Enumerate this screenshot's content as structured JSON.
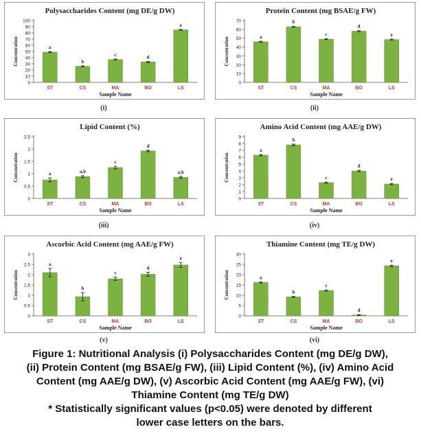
{
  "chart_data": [
    {
      "type": "bar",
      "title": "Polysaccharides Content (mg DE/g DW)",
      "panel_label": "(i)",
      "xlabel": "Sample Name",
      "ylabel": "Concentration",
      "categories": [
        "ST",
        "CS",
        "MA",
        "BO",
        "LS"
      ],
      "values": [
        49,
        26,
        37,
        33,
        85
      ],
      "errors": [
        0.8,
        0.8,
        0.8,
        0.8,
        0.8
      ],
      "letters": [
        "a",
        "b",
        "c",
        "d",
        "e"
      ],
      "ylim": [
        0,
        100
      ],
      "yticks": [
        0,
        10,
        20,
        30,
        40,
        50,
        60,
        70,
        80,
        90,
        100
      ]
    },
    {
      "type": "bar",
      "title": "Protein Content (mg BSAE/g FW)",
      "panel_label": "(ii)",
      "xlabel": "Sample Name",
      "ylabel": "Concentration",
      "categories": [
        "ST",
        "CS",
        "MA",
        "BO",
        "LS"
      ],
      "values": [
        46,
        63,
        49,
        58,
        48.5
      ],
      "errors": [
        0.6,
        0.6,
        0.6,
        0.6,
        0.6
      ],
      "letters": [
        "a",
        "b",
        "c",
        "d",
        "e"
      ],
      "ylim": [
        0,
        70
      ],
      "yticks": [
        0,
        10,
        20,
        30,
        40,
        50,
        60,
        70
      ]
    },
    {
      "type": "bar",
      "title": "Lipid Content (%)",
      "panel_label": "(iii)",
      "xlabel": "Sample Name",
      "ylabel": "Concentration",
      "categories": [
        "ST",
        "CS",
        "MA",
        "BO",
        "LS"
      ],
      "values": [
        0.75,
        0.88,
        1.25,
        1.92,
        0.85
      ],
      "errors": [
        0.08,
        0.04,
        0.05,
        0.03,
        0.04
      ],
      "letters": [
        "a",
        "a,b",
        "c",
        "d",
        "a,b"
      ],
      "ylim": [
        0,
        2.5
      ],
      "yticks": [
        0,
        0.5,
        1,
        1.5,
        2,
        2.5
      ]
    },
    {
      "type": "bar",
      "title": "Amino Acid Content (mg AAE/g DW)",
      "panel_label": "(iv)",
      "xlabel": "Sample Name",
      "ylabel": "Concentration",
      "categories": [
        "ST",
        "CS",
        "MA",
        "BO",
        "LS"
      ],
      "values": [
        6.3,
        7.8,
        2.3,
        4.0,
        2.1
      ],
      "errors": [
        0.1,
        0.1,
        0.08,
        0.1,
        0.08
      ],
      "letters": [
        "a",
        "b",
        "c",
        "d",
        "e"
      ],
      "ylim": [
        0,
        9
      ],
      "yticks": [
        0,
        1,
        2,
        3,
        4,
        5,
        6,
        7,
        8,
        9
      ]
    },
    {
      "type": "bar",
      "title": "Ascorbic Acid Content (mg AAE/g FW)",
      "panel_label": "(v)",
      "xlabel": "Sample Name",
      "ylabel": "Concentration",
      "categories": [
        "ST",
        "CS",
        "MA",
        "BO",
        "LS"
      ],
      "values": [
        2.1,
        0.93,
        1.8,
        2.02,
        2.47
      ],
      "errors": [
        0.2,
        0.2,
        0.08,
        0.1,
        0.12
      ],
      "letters": [
        "a",
        "b",
        "c",
        "d",
        "e"
      ],
      "ylim": [
        0,
        3
      ],
      "yticks": [
        0,
        0.5,
        1,
        1.5,
        2,
        2.5,
        3
      ]
    },
    {
      "type": "bar",
      "title": "Thiamine Content (mg TE/g DW)",
      "panel_label": "(vi)",
      "xlabel": "Sample Name",
      "ylabel": "Concentration",
      "categories": [
        "ST",
        "CS",
        "MA",
        "BO",
        "LS"
      ],
      "values": [
        16.2,
        9.2,
        12.3,
        0.4,
        24.3
      ],
      "errors": [
        0.3,
        0.3,
        0.3,
        0.2,
        0.3
      ],
      "letters": [
        "a",
        "b",
        "c",
        "d",
        "e"
      ],
      "ylim": [
        0,
        30
      ],
      "yticks": [
        0,
        5,
        10,
        15,
        20,
        25,
        30
      ]
    }
  ],
  "colors": {
    "bar": "#7bb242",
    "bar_edge": "#5e8f2e",
    "category_label": "#c0392b",
    "axis": "#555555",
    "text": "#222222"
  },
  "caption": {
    "line1": "Figure 1: Nutritional Analysis (i) Polysaccharides Content (mg DE/g DW),",
    "line2": "(ii) Protein Content (mg BSAE/g FW), (iii) Lipid Content (%), (iv) Amino Acid",
    "line3": "Content (mg AAE/g DW), (v) Ascorbic Acid Content (mg AAE/g FW), (vi)",
    "line4": "Thiamine Content (mg TE/g DW)",
    "line5": "* Statistically significant values (p<0.05) were denoted by different",
    "line6": "lower case letters on the bars."
  }
}
